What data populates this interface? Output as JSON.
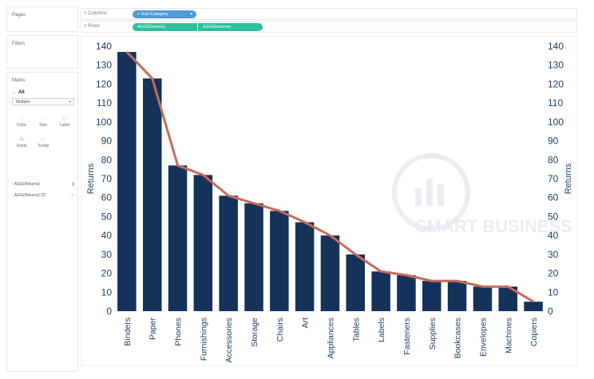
{
  "sidebar": {
    "pages_title": "Pages",
    "filters_title": "Filters",
    "marks_title": "Marks",
    "marks_all": "All",
    "mark_type": "Multiple",
    "buttons": [
      {
        "label": "Color",
        "icon": "color-icon"
      },
      {
        "label": "Size",
        "icon": "size-icon"
      },
      {
        "label": "Label",
        "icon": "label-icon"
      },
      {
        "label": "Detail",
        "icon": "detail-icon"
      },
      {
        "label": "Tooltip",
        "icon": "tooltip-icon"
      }
    ],
    "measure_pills": [
      "AGG(Returns)",
      "AGG(Returns) (2)"
    ]
  },
  "shelves": {
    "columns_label": "Columns",
    "columns_pill": "Sub-Category",
    "rows_label": "Rows",
    "rows_pills": [
      "AGG(Returns)",
      "AGG(Returns)"
    ]
  },
  "colors": {
    "bar": "#15325a",
    "line": "#c96a5b",
    "axis_text": "#1f3a5f",
    "pill_blue": "#4a9bd6",
    "pill_green": "#2fbf9a"
  },
  "chart_data": {
    "type": "bar",
    "categories": [
      "Binders",
      "Paper",
      "Phones",
      "Furnishings",
      "Accessories",
      "Storage",
      "Chairs",
      "Art",
      "Appliances",
      "Tables",
      "Labels",
      "Fasteners",
      "Supplies",
      "Bookcases",
      "Envelopes",
      "Machines",
      "Copiers"
    ],
    "series": [
      {
        "type": "bar",
        "values": [
          137,
          123,
          77,
          72,
          61,
          57,
          53,
          47,
          40,
          30,
          21,
          19,
          16,
          16,
          13,
          13,
          5
        ]
      },
      {
        "type": "line",
        "values": [
          137,
          123,
          77,
          72,
          61,
          57,
          53,
          47,
          40,
          30,
          21,
          19,
          16,
          16,
          13,
          13,
          5
        ]
      }
    ],
    "ylabel_left": "Returns",
    "ylabel_right": "Returns",
    "ylim": [
      0,
      140
    ],
    "yticks": [
      0,
      10,
      20,
      30,
      40,
      50,
      60,
      70,
      80,
      90,
      100,
      110,
      120,
      130,
      140
    ]
  }
}
